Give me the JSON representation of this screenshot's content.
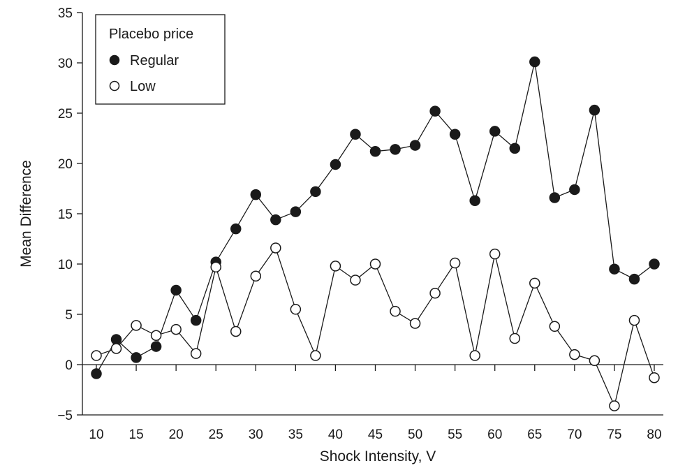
{
  "chart_data": {
    "type": "line",
    "title": "",
    "xlabel": "Shock Intensity, V",
    "ylabel": "Mean Difference",
    "xlim": [
      10,
      80
    ],
    "ylim": [
      -5,
      35
    ],
    "xticks": [
      10,
      15,
      20,
      25,
      30,
      35,
      40,
      45,
      50,
      55,
      60,
      65,
      70,
      75,
      80
    ],
    "xtick_labels": [
      "10",
      "15",
      "20",
      "25",
      "30",
      "35",
      "40",
      "45",
      "50",
      "55",
      "60",
      "65",
      "70",
      "75",
      "80"
    ],
    "yticks": [
      -5,
      0,
      5,
      10,
      15,
      20,
      25,
      30,
      35
    ],
    "ytick_labels": [
      "−5",
      "0",
      "5",
      "10",
      "15",
      "20",
      "25",
      "30",
      "35"
    ],
    "grid": false,
    "legend": {
      "title": "Placebo price",
      "placement": "top-left",
      "entries": [
        "Regular",
        "Low"
      ]
    },
    "x": [
      10,
      12.5,
      15,
      17.5,
      20,
      22.5,
      25,
      27.5,
      30,
      32.5,
      35,
      37.5,
      40,
      42.5,
      45,
      47.5,
      50,
      52.5,
      55,
      57.5,
      60,
      62.5,
      65,
      67.5,
      70,
      72.5,
      75,
      77.5,
      80
    ],
    "series": [
      {
        "name": "Regular",
        "marker": "filled-circle",
        "color": "#1a1a1a",
        "values": [
          -0.9,
          2.5,
          0.7,
          1.8,
          7.4,
          4.4,
          10.2,
          13.5,
          16.9,
          14.4,
          15.2,
          17.2,
          19.9,
          22.9,
          21.2,
          21.4,
          21.8,
          25.2,
          22.9,
          16.3,
          23.2,
          21.5,
          30.1,
          16.6,
          17.4,
          25.3,
          9.5,
          8.5,
          10.0
        ]
      },
      {
        "name": "Low",
        "marker": "open-circle",
        "color": "#1a1a1a",
        "values": [
          0.9,
          1.6,
          3.9,
          2.9,
          3.5,
          1.1,
          9.7,
          3.3,
          8.8,
          11.6,
          5.5,
          0.9,
          9.8,
          8.4,
          10.0,
          5.3,
          4.1,
          7.1,
          10.1,
          0.9,
          11.0,
          2.6,
          8.1,
          3.8,
          1.0,
          0.4,
          -4.1,
          4.4,
          -1.3
        ]
      }
    ]
  }
}
